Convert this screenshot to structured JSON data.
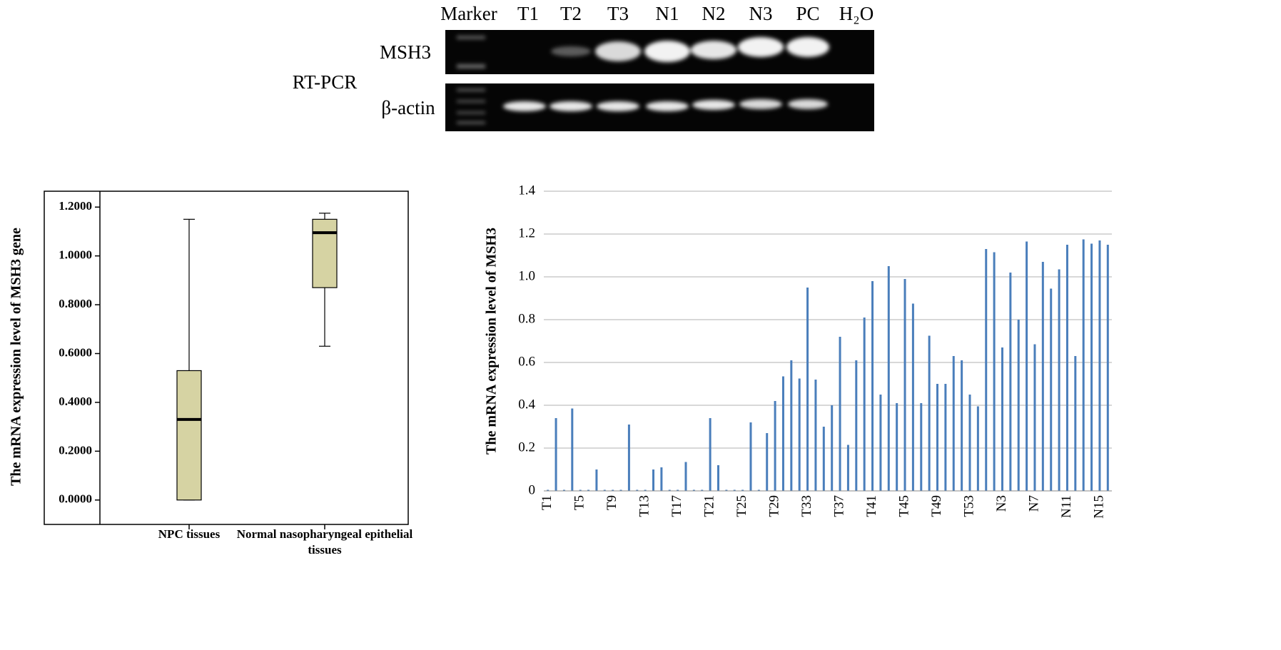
{
  "gel": {
    "method": "RT-PCR",
    "lanes": [
      "Marker",
      "T1",
      "T2",
      "T3",
      "N1",
      "N2",
      "N3",
      "PC",
      "H₂O"
    ],
    "rows": [
      "MSH3",
      "β-actin"
    ]
  },
  "chart_data": [
    {
      "type": "box",
      "y_label": "The mRNA expression level of MSH3 gene",
      "categories": [
        "NPC tissues",
        "Normal nasopharyngeal epithelial tissues"
      ],
      "boxes": [
        {
          "min": 0,
          "q1": 0,
          "median": 0.33,
          "q3": 0.53,
          "max": 1.15
        },
        {
          "min": 0.63,
          "q1": 0.87,
          "median": 1.095,
          "q3": 1.15,
          "max": 1.175
        }
      ],
      "color": "#d6d3a3",
      "ylim": [
        -0.1,
        1.265
      ],
      "yticks": [
        {
          "value": 0,
          "label": "0.0000"
        },
        {
          "value": 0.2,
          "label": "0.2000"
        },
        {
          "value": 0.4,
          "label": "0.4000"
        },
        {
          "value": 0.6,
          "label": "0.6000"
        },
        {
          "value": 0.8,
          "label": "0.8000"
        },
        {
          "value": 1,
          "label": "1.0000"
        },
        {
          "value": 1.2,
          "label": "1.2000"
        }
      ]
    },
    {
      "type": "bar",
      "y_label": "The mRNA expression level of MSH3",
      "categories": [
        "T1",
        null,
        null,
        null,
        "T5",
        null,
        null,
        null,
        "T9",
        null,
        null,
        null,
        "T13",
        null,
        null,
        null,
        "T17",
        null,
        null,
        null,
        "T21",
        null,
        null,
        null,
        "T25",
        null,
        null,
        null,
        "T29",
        null,
        null,
        null,
        "T33",
        null,
        null,
        null,
        "T37",
        null,
        null,
        null,
        "T41",
        null,
        null,
        null,
        "T45",
        null,
        null,
        null,
        "T49",
        null,
        null,
        null,
        "T53",
        null,
        null,
        null,
        "N3",
        null,
        null,
        null,
        "N7",
        null,
        null,
        null,
        "N11",
        null,
        null,
        null,
        "N15",
        null
      ],
      "values": [
        0.005,
        0.34,
        0.005,
        0.385,
        0.005,
        0.005,
        0.1,
        0.005,
        0.005,
        0.005,
        0.31,
        0.005,
        0.005,
        0.1,
        0.11,
        0.005,
        0.005,
        0.135,
        0.005,
        0.005,
        0.34,
        0.12,
        0.005,
        0.005,
        0.005,
        0.32,
        0.005,
        0.27,
        0.42,
        0.535,
        0.61,
        0.525,
        0.95,
        0.52,
        0.3,
        0.4,
        0.72,
        0.215,
        0.61,
        0.81,
        0.98,
        0.45,
        1.05,
        0.41,
        0.99,
        0.875,
        0.41,
        0.725,
        0.5,
        0.5,
        0.63,
        0.61,
        0.45,
        0.395,
        1.13,
        1.115,
        0.67,
        1.02,
        0.8,
        1.165,
        0.685,
        1.07,
        0.945,
        1.035,
        1.15,
        0.63,
        1.175,
        1.155,
        1.17,
        1.15
      ],
      "color": "#4a7ebb",
      "ylim": [
        0,
        1.4
      ],
      "yticks": [
        0,
        0.2,
        0.4,
        0.6,
        0.8,
        {
          "value": 1,
          "label": "1.0"
        },
        1.2,
        1.4
      ],
      "grid": true
    }
  ]
}
